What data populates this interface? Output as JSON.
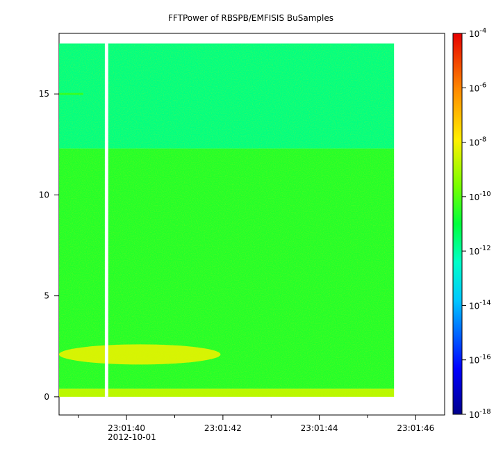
{
  "chart_data": {
    "type": "heatmap",
    "title": "FFTPower of RBSPB/EMFISIS  BuSamples",
    "xlabel": "",
    "ylabel": "",
    "x_axis": {
      "kind": "time",
      "date_label": "2012-10-01",
      "range": [
        "23:01:38.6",
        "23:01:46.6"
      ],
      "ticks": [
        {
          "t": 40,
          "label": "23:01:40"
        },
        {
          "t": 42,
          "label": "23:01:42"
        },
        {
          "t": 44,
          "label": "23:01:44"
        },
        {
          "t": 46,
          "label": "23:01:46"
        }
      ],
      "minor_ticks": [
        39,
        41,
        43,
        45
      ]
    },
    "y_axis": {
      "range": [
        -0.9,
        18.0
      ],
      "ticks": [
        0,
        5,
        10,
        15
      ]
    },
    "colorbar": {
      "scale": "log",
      "range": [
        1e-18,
        0.0001
      ],
      "colormap": "rainbow",
      "ticks": [
        {
          "exp": -4,
          "base": "10",
          "sup": "-4"
        },
        {
          "exp": -6,
          "base": "10",
          "sup": "-6"
        },
        {
          "exp": -8,
          "base": "10",
          "sup": "-8"
        },
        {
          "exp": -10,
          "base": "10",
          "sup": "-10"
        },
        {
          "exp": -12,
          "base": "10",
          "sup": "-12"
        },
        {
          "exp": -14,
          "base": "10",
          "sup": "-14"
        },
        {
          "exp": -16,
          "base": "10",
          "sup": "-16"
        },
        {
          "exp": -18,
          "base": "10",
          "sup": "-18"
        }
      ]
    },
    "data_extent": {
      "t_start": 38.6,
      "t_end": 45.55,
      "y_min": 0,
      "y_max": 17.5
    },
    "gap": {
      "t_start": 39.55,
      "t_end": 39.62
    },
    "regions": [
      {
        "name": "upper band",
        "t_start": 38.6,
        "t_end": 45.55,
        "y_min": 12.3,
        "y_max": 17.5,
        "log_power": -11.7
      },
      {
        "name": "middle band",
        "t_start": 38.6,
        "t_end": 45.55,
        "y_min": 0.4,
        "y_max": 12.3,
        "log_power": -10.6
      },
      {
        "name": "bottom strip",
        "t_start": 38.6,
        "t_end": 45.55,
        "y_min": 0,
        "y_max": 0.4,
        "log_power": -8.8
      },
      {
        "name": "low-frequency enhancement",
        "t_start": 38.6,
        "t_end": 41.95,
        "y_min": 1.6,
        "y_max": 2.6,
        "log_power": -8.2
      },
      {
        "name": "line near 15",
        "t_start": 38.6,
        "t_end": 39.1,
        "y_min": 14.95,
        "y_max": 15.05,
        "log_power": -10.5
      }
    ]
  }
}
